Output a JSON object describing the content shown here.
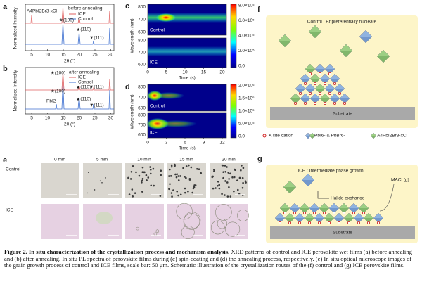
{
  "panel_a": {
    "label": "a",
    "y_label": "Normalized Intensity",
    "x_label": "2θ (°)",
    "x_ticks": [
      5,
      10,
      15,
      20,
      25,
      30
    ],
    "legend_title": "before annealing",
    "legend": [
      "ICE",
      "Control"
    ],
    "phase_label": "A4PbI2Br3-xCl",
    "peaks": [
      "★(100)",
      "▲(110)",
      "▼(111)"
    ]
  },
  "panel_b": {
    "label": "b",
    "y_label": "Normalized Intensity",
    "x_label": "2θ (°)",
    "x_ticks": [
      5,
      10,
      15,
      20,
      25,
      30
    ],
    "legend_title": "after annealing",
    "legend": [
      "ICE",
      "Control"
    ],
    "impurity_label": "PbI2",
    "peaks_ice": [
      "★(100)",
      "▲(110)",
      "▼(111)"
    ],
    "peaks_control": [
      "★(100)",
      "▲(110)",
      "▼(111)"
    ]
  },
  "panel_c": {
    "label": "c",
    "y_label": "Wavelength (nm)",
    "x_label": "Time (s)",
    "x_ticks": [
      0,
      5,
      10,
      15,
      20
    ],
    "y_ticks": [
      600,
      700,
      800
    ],
    "rows": [
      "Control",
      "ICE"
    ],
    "colorbar_ticks": [
      "0.0",
      "2.0×10⁵",
      "4.0×10⁵",
      "6.0×10⁵",
      "8.0×10⁵"
    ]
  },
  "panel_d": {
    "label": "d",
    "y_label": "Wavelength (nm)",
    "x_label": "Time (s)",
    "x_ticks": [
      0,
      3,
      6,
      9,
      12
    ],
    "y_ticks": [
      600,
      700,
      800
    ],
    "rows": [
      "Control",
      "ICE"
    ],
    "colorbar_ticks": [
      "0.0",
      "5.0×10⁵",
      "1.0×10⁶",
      "1.5×10⁶",
      "2.0×10⁶"
    ]
  },
  "panel_e": {
    "label": "e",
    "columns": [
      "0 min",
      "5 min",
      "10 min",
      "15 min",
      "20 min"
    ],
    "rows": [
      "Control",
      "ICE"
    ]
  },
  "panel_f": {
    "label": "f",
    "title": "Control : Br preferentially nucleate",
    "substrate": "Substrate",
    "legend": [
      "A site cation",
      "PbI6- & PbBr6-",
      "A4PbI2Br3-xCl"
    ]
  },
  "panel_g": {
    "label": "g",
    "title": "ICE : Intermediate phase growth",
    "gas": "MACl (g)",
    "process": "Halide exchange",
    "substrate": "Substrate"
  },
  "caption": {
    "label": "Figure 2. In situ characterization of the crystallization process and mechanism analysis.",
    "text": "XRD patterns of control and ICE perovskite wet films (a) before annealing and (b) after annealing. In situ PL spectra of perovskite films during (c) spin-coating and (d) the annealing process, respectively. (e) In situ optical microscope images of the grain growth process of control and ICE films, scale bar: 50 μm. Schematic illustration of the crystallization routes of the (f) control and (g) ICE perovskite films."
  }
}
